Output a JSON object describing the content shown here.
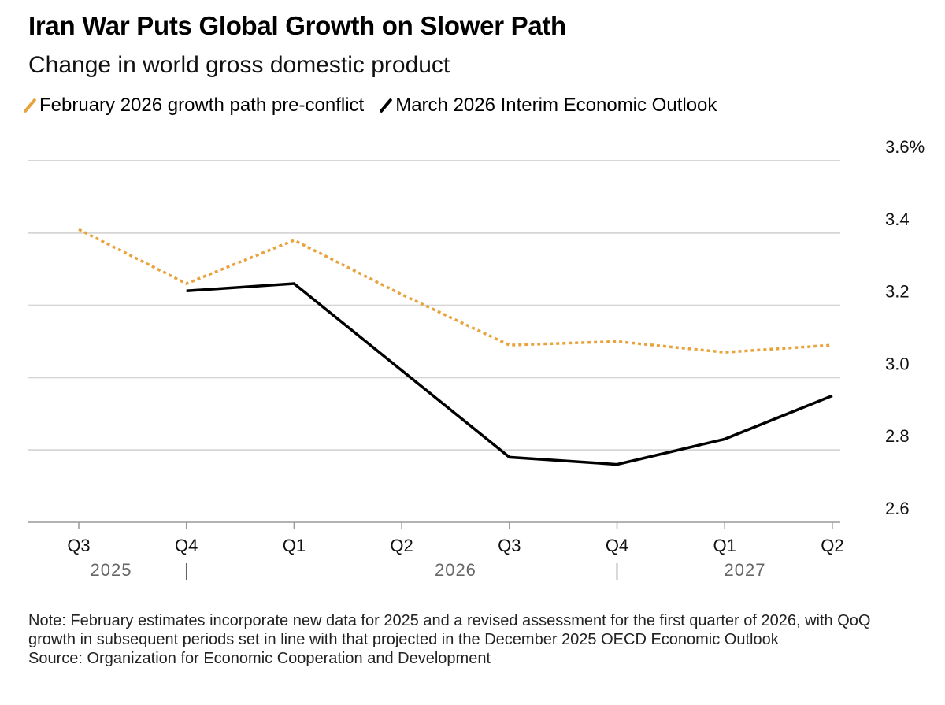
{
  "title": "Iran War Puts Global Growth on Slower Path",
  "subtitle": "Change in world gross domestic product",
  "note": "Note: February estimates incorporate new data for 2025 and a revised assessment for the first quarter of 2026, with QoQ growth in subsequent periods set in line with that projected in the December 2025 OECD Economic Outlook",
  "source": "Source: Organization for Economic Cooperation and Development",
  "chart_data": {
    "type": "line",
    "categories": [
      "Q3",
      "Q4",
      "Q1",
      "Q2",
      "Q3",
      "Q4",
      "Q1",
      "Q2"
    ],
    "years": [
      {
        "label": "2025",
        "range": [
          0,
          1
        ]
      },
      {
        "label": "2026",
        "range": [
          2,
          5
        ]
      },
      {
        "label": "2027",
        "range": [
          6,
          7
        ]
      }
    ],
    "y_ticks": [
      "3.6%",
      "3.4",
      "3.2",
      "3.0",
      "2.8",
      "2.6"
    ],
    "y_tick_values": [
      3.6,
      3.4,
      3.2,
      3.0,
      2.8,
      2.6
    ],
    "ylim": [
      2.6,
      3.6
    ],
    "y_axis_side": "right",
    "grid": true,
    "legend_placement": "top-left",
    "series": [
      {
        "name": "February 2026 growth path pre-conflict",
        "color": "#E8A33D",
        "style": "dotted",
        "values": [
          3.41,
          3.26,
          3.38,
          3.23,
          3.09,
          3.1,
          3.07,
          3.09
        ]
      },
      {
        "name": "March 2026 Interim Economic Outlook",
        "color": "#000000",
        "style": "solid",
        "values": [
          null,
          3.24,
          3.26,
          3.02,
          2.78,
          2.76,
          2.83,
          2.95
        ]
      }
    ]
  }
}
